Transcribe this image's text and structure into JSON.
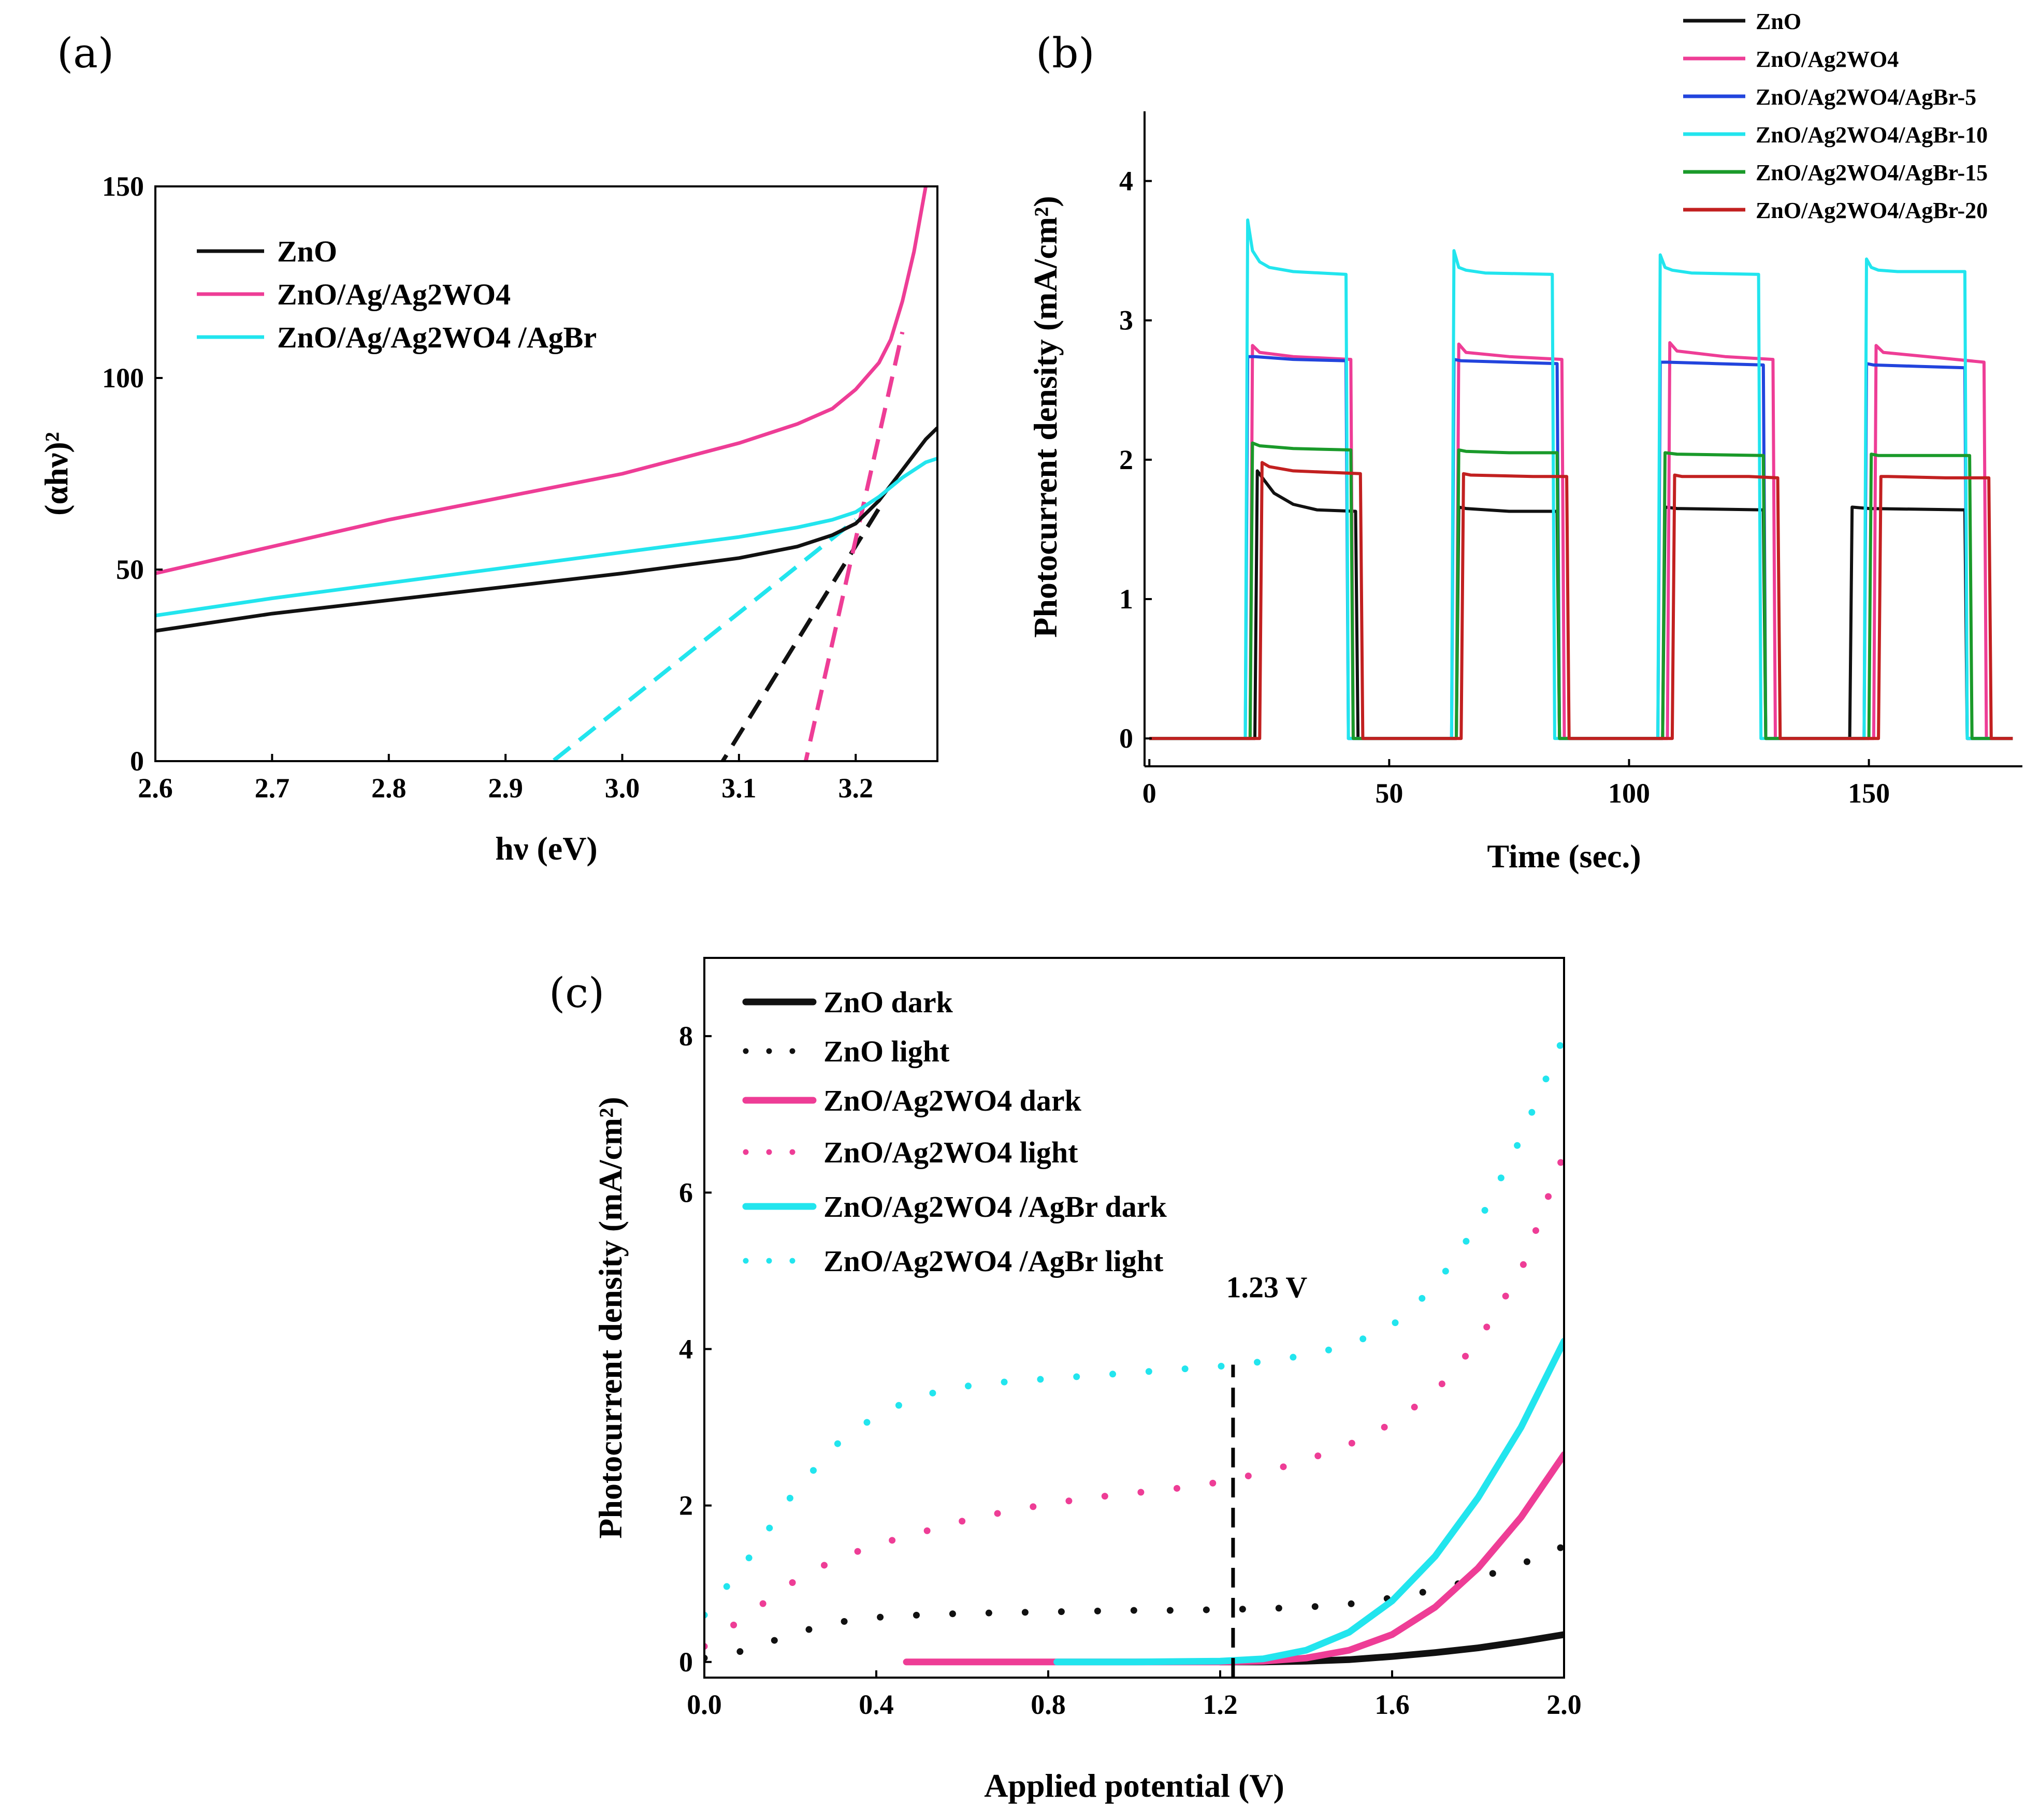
{
  "figure": {
    "labels": [
      "(a)",
      "(b)",
      "(c)"
    ]
  },
  "colors": {
    "black": "#111111",
    "magenta": "#ee3d96",
    "blue": "#2244dd",
    "cyan": "#22e5ee",
    "green": "#1a9a2a",
    "red": "#c22020"
  },
  "chart_data": [
    {
      "id": "a",
      "type": "line",
      "title": "",
      "xlabel": "hν (eV)",
      "ylabel": "(αhν)²",
      "xlim": [
        2.6,
        3.27
      ],
      "ylim": [
        0,
        150
      ],
      "xticks": [
        "2.6",
        "2.7",
        "2.8",
        "2.9",
        "3.0",
        "3.1",
        "3.2"
      ],
      "yticks": [
        "0",
        "50",
        "100",
        "150"
      ],
      "legend": [
        "ZnO",
        "ZnO/Ag/Ag2WO4",
        "ZnO/Ag/Ag2WO4 /AgBr"
      ],
      "series": [
        {
          "name": "ZnO",
          "color": "black",
          "x": [
            2.6,
            2.7,
            2.8,
            2.9,
            3.0,
            3.1,
            3.15,
            3.18,
            3.2,
            3.22,
            3.24,
            3.26,
            3.27
          ],
          "y": [
            34,
            38.5,
            42,
            45.5,
            49,
            53,
            56,
            59,
            62,
            68,
            76,
            84,
            87
          ]
        },
        {
          "name": "ZnO/Ag/Ag2WO4",
          "color": "magenta",
          "x": [
            2.6,
            2.7,
            2.8,
            2.9,
            3.0,
            3.1,
            3.15,
            3.18,
            3.2,
            3.22,
            3.23,
            3.24,
            3.25,
            3.26
          ],
          "y": [
            49,
            56,
            63,
            69,
            75,
            83,
            88,
            92,
            97,
            104,
            110,
            120,
            133,
            150
          ]
        },
        {
          "name": "ZnO/Ag/Ag2WO4 /AgBr",
          "color": "cyan",
          "x": [
            2.6,
            2.7,
            2.8,
            2.9,
            3.0,
            3.1,
            3.15,
            3.18,
            3.2,
            3.22,
            3.24,
            3.26,
            3.27
          ],
          "y": [
            38,
            42.5,
            46.5,
            50.5,
            54.5,
            58.5,
            61,
            63,
            65,
            69,
            74,
            78,
            79
          ]
        }
      ],
      "tangents": [
        {
          "name": "ZnO fit",
          "color": "black",
          "x": [
            3.08,
            3.22
          ],
          "y": [
            -3,
            66
          ]
        },
        {
          "name": "ZnO/Ag/Ag2WO4 fit",
          "color": "magenta",
          "x": [
            3.155,
            3.24
          ],
          "y": [
            -3,
            112
          ]
        },
        {
          "name": "ZnO/Ag/Ag2WO4/AgBr fit",
          "color": "cyan",
          "x": [
            2.92,
            3.2
          ],
          "y": [
            -5,
            63
          ]
        }
      ]
    },
    {
      "id": "b",
      "type": "line",
      "title": "",
      "xlabel": "Time (sec.)",
      "ylabel": "Photocurrent density (mA/cm²)",
      "xlim": [
        -1,
        182
      ],
      "ylim": [
        -0.2,
        4.5
      ],
      "xticks": [
        "0",
        "50",
        "100",
        "150"
      ],
      "yticks": [
        "0",
        "1",
        "2",
        "3",
        "4"
      ],
      "legend": [
        "ZnO",
        "ZnO/Ag2WO4",
        "ZnO/Ag2WO4/AgBr-5",
        "ZnO/Ag2WO4/AgBr-10",
        "ZnO/Ag2WO4/AgBr-15",
        "ZnO/Ag2WO4/AgBr-20"
      ],
      "series": [
        {
          "name": "ZnO",
          "color": "black",
          "x": [
            0,
            22,
            22.5,
            24,
            26,
            30,
            35,
            43,
            43.5,
            64,
            64.5,
            66,
            75,
            85,
            85.5,
            107,
            107.5,
            110,
            128,
            128.5,
            146,
            146.5,
            150,
            170,
            170.5,
            180
          ],
          "y": [
            0,
            0,
            1.92,
            1.85,
            1.76,
            1.68,
            1.64,
            1.63,
            0,
            0,
            1.66,
            1.65,
            1.63,
            1.63,
            0,
            0,
            1.66,
            1.65,
            1.64,
            0,
            0,
            1.66,
            1.65,
            1.64,
            0,
            0
          ]
        },
        {
          "name": "ZnO/Ag2WO4",
          "color": "magenta",
          "x": [
            0,
            21,
            21.5,
            23,
            30,
            42,
            42.5,
            64,
            64.5,
            66,
            75,
            86,
            86.5,
            108,
            108.5,
            110,
            120,
            130,
            130.5,
            151,
            151.5,
            153,
            165,
            174,
            174.5,
            180
          ],
          "y": [
            0,
            0,
            2.82,
            2.77,
            2.74,
            2.72,
            0,
            0,
            2.83,
            2.77,
            2.74,
            2.72,
            0,
            0,
            2.84,
            2.78,
            2.74,
            2.72,
            0,
            0,
            2.82,
            2.77,
            2.73,
            2.7,
            0,
            0
          ]
        },
        {
          "name": "ZnO/Ag2WO4/AgBr-5",
          "color": "blue",
          "x": [
            0,
            20,
            20.5,
            22,
            30,
            41,
            41.5,
            63,
            63.5,
            65,
            75,
            85,
            85.5,
            106,
            106.5,
            108,
            118,
            128,
            128.5,
            149,
            149.5,
            151,
            160,
            170,
            170.5,
            180
          ],
          "y": [
            0,
            0,
            2.74,
            2.74,
            2.72,
            2.71,
            0,
            0,
            2.72,
            2.71,
            2.7,
            2.69,
            0,
            0,
            2.7,
            2.7,
            2.69,
            2.68,
            0,
            0,
            2.69,
            2.68,
            2.67,
            2.66,
            0,
            0
          ]
        },
        {
          "name": "ZnO/Ag2WO4/AgBr-10",
          "color": "cyan",
          "x": [
            0,
            20,
            20.5,
            21.5,
            23,
            25,
            30,
            41,
            41.5,
            63,
            63.5,
            64.5,
            66,
            70,
            84,
            84.5,
            106,
            106.5,
            107.5,
            109,
            113,
            127,
            127.5,
            149,
            149.5,
            150.5,
            152,
            156,
            170,
            170.5,
            180
          ],
          "y": [
            0,
            0,
            3.72,
            3.5,
            3.42,
            3.38,
            3.35,
            3.33,
            0,
            0,
            3.5,
            3.38,
            3.36,
            3.34,
            3.33,
            0,
            0,
            3.47,
            3.38,
            3.36,
            3.34,
            3.33,
            0,
            0,
            3.44,
            3.38,
            3.36,
            3.35,
            3.35,
            0,
            0
          ]
        },
        {
          "name": "ZnO/Ag2WO4/AgBr-15",
          "color": "green",
          "x": [
            0,
            21,
            21.5,
            23,
            30,
            42,
            42.5,
            64,
            64.5,
            66,
            75,
            85,
            85.5,
            107,
            107.5,
            110,
            128,
            128.5,
            150,
            150.5,
            152,
            171,
            171.5,
            180
          ],
          "y": [
            0,
            0,
            2.12,
            2.1,
            2.08,
            2.07,
            0,
            0,
            2.07,
            2.06,
            2.05,
            2.05,
            0,
            0,
            2.05,
            2.04,
            2.03,
            0,
            0,
            2.04,
            2.03,
            2.03,
            0,
            0
          ]
        },
        {
          "name": "ZnO/Ag2WO4/AgBr-20",
          "color": "red",
          "x": [
            0,
            23,
            23.5,
            25,
            30,
            44,
            44.5,
            65,
            65.5,
            67,
            80,
            87,
            87.5,
            109,
            109.5,
            111,
            125,
            131,
            131.5,
            152,
            152.5,
            154,
            166,
            175,
            175.5,
            180
          ],
          "y": [
            0,
            0,
            1.98,
            1.95,
            1.92,
            1.9,
            0,
            0,
            1.9,
            1.89,
            1.88,
            1.88,
            0,
            0,
            1.89,
            1.88,
            1.88,
            1.87,
            0,
            0,
            1.88,
            1.88,
            1.87,
            1.87,
            0,
            0
          ]
        }
      ]
    },
    {
      "id": "c",
      "type": "line",
      "title": "",
      "xlabel": "Applied potential (V)",
      "ylabel": "Photocurrent density (mA/cm²)",
      "xlim": [
        0.0,
        2.0
      ],
      "ylim": [
        -0.2,
        9.0
      ],
      "xticks": [
        "0.0",
        "0.4",
        "0.8",
        "1.2",
        "1.6",
        "2.0"
      ],
      "yticks": [
        "0",
        "2",
        "4",
        "6",
        "8"
      ],
      "legend": [
        "ZnO dark",
        "ZnO light",
        "ZnO/Ag2WO4 dark",
        "ZnO/Ag2WO4 light",
        "ZnO/Ag2WO4 /AgBr dark",
        "ZnO/Ag2WO4 /AgBr light"
      ],
      "annotation": {
        "text": "1.23 V",
        "x": 1.23,
        "y_top": 3.8
      },
      "series": [
        {
          "name": "ZnO dark",
          "color": "black",
          "style": "solid",
          "x": [
            1.2,
            1.3,
            1.4,
            1.5,
            1.6,
            1.7,
            1.8,
            1.9,
            2.0
          ],
          "y": [
            0,
            0,
            0.01,
            0.03,
            0.07,
            0.12,
            0.18,
            0.26,
            0.35
          ]
        },
        {
          "name": "ZnO light",
          "color": "black",
          "style": "dotted",
          "x": [
            0.0,
            0.1,
            0.2,
            0.3,
            0.4,
            0.5,
            0.6,
            0.7,
            0.8,
            0.9,
            1.0,
            1.1,
            1.2,
            1.3,
            1.4,
            1.5,
            1.6,
            1.7,
            1.8,
            1.9,
            2.0
          ],
          "y": [
            0.05,
            0.15,
            0.35,
            0.5,
            0.57,
            0.6,
            0.62,
            0.63,
            0.64,
            0.65,
            0.66,
            0.66,
            0.67,
            0.68,
            0.7,
            0.74,
            0.82,
            0.92,
            1.07,
            1.25,
            1.48
          ]
        },
        {
          "name": "ZnO/Ag2WO4 dark",
          "color": "magenta",
          "style": "solid",
          "x": [
            0.47,
            0.8,
            1.2,
            1.3,
            1.4,
            1.5,
            1.6,
            1.7,
            1.8,
            1.9,
            2.0
          ],
          "y": [
            0,
            0,
            0,
            0.01,
            0.05,
            0.15,
            0.35,
            0.7,
            1.2,
            1.85,
            2.65
          ]
        },
        {
          "name": "ZnO/Ag2WO4 light",
          "color": "magenta",
          "style": "dotted",
          "x": [
            0.0,
            0.1,
            0.2,
            0.3,
            0.4,
            0.5,
            0.6,
            0.7,
            0.8,
            0.9,
            1.0,
            1.1,
            1.2,
            1.3,
            1.4,
            1.5,
            1.6,
            1.7,
            1.8,
            1.9,
            2.0
          ],
          "y": [
            0.2,
            0.6,
            1.0,
            1.3,
            1.5,
            1.65,
            1.8,
            1.92,
            2.02,
            2.1,
            2.16,
            2.22,
            2.3,
            2.42,
            2.58,
            2.78,
            3.05,
            3.45,
            4.1,
            5.0,
            6.5
          ]
        },
        {
          "name": "ZnO/Ag2WO4 /AgBr dark",
          "color": "cyan",
          "style": "solid",
          "x": [
            0.82,
            1.0,
            1.2,
            1.3,
            1.4,
            1.5,
            1.6,
            1.7,
            1.8,
            1.9,
            2.0
          ],
          "y": [
            0,
            0,
            0.01,
            0.04,
            0.15,
            0.38,
            0.78,
            1.35,
            2.1,
            3.0,
            4.1
          ]
        },
        {
          "name": "ZnO/Ag2WO4 /AgBr light",
          "color": "cyan",
          "style": "dotted",
          "x": [
            0.0,
            0.1,
            0.2,
            0.3,
            0.4,
            0.5,
            0.6,
            0.7,
            0.8,
            0.9,
            1.0,
            1.1,
            1.2,
            1.3,
            1.4,
            1.5,
            1.6,
            1.7,
            1.8,
            1.9,
            2.0
          ],
          "y": [
            0.6,
            1.3,
            2.1,
            2.75,
            3.15,
            3.4,
            3.52,
            3.58,
            3.62,
            3.66,
            3.7,
            3.74,
            3.78,
            3.84,
            3.92,
            4.05,
            4.3,
            4.8,
            5.6,
            6.7,
            8.0
          ]
        }
      ]
    }
  ]
}
